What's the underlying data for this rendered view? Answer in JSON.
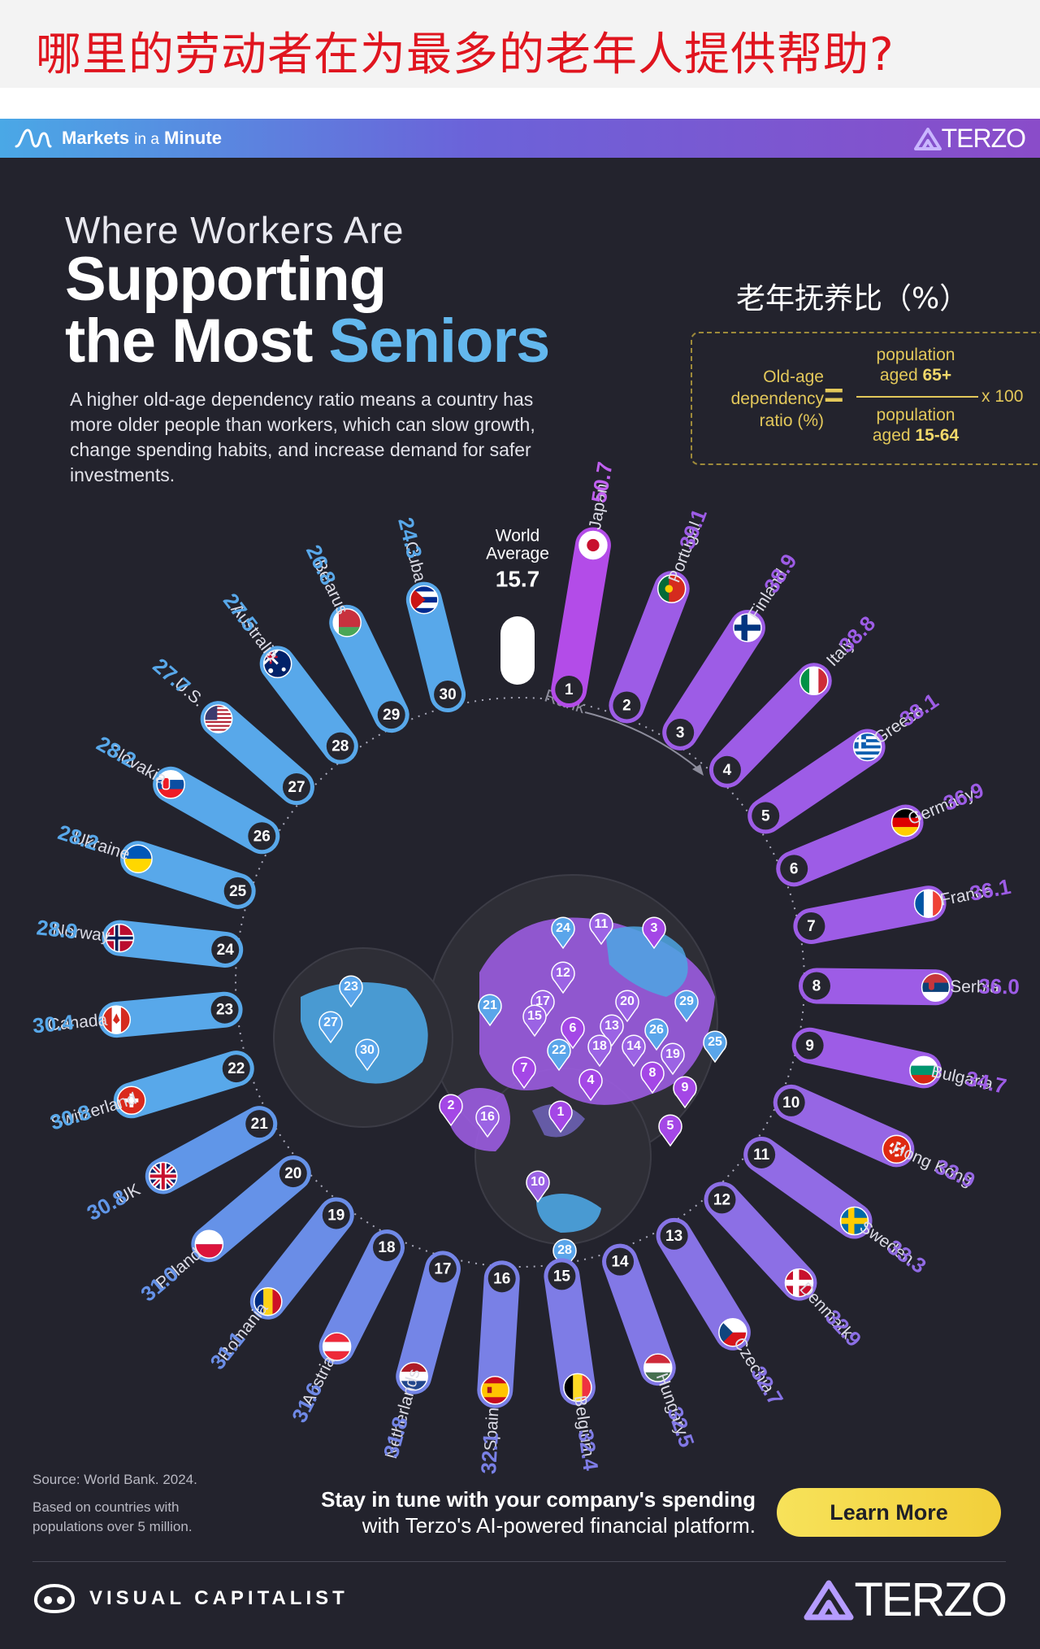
{
  "banner": {
    "title": "哪里的劳动者在为最多的老年人提供帮助?"
  },
  "header": {
    "brand_bold": "Markets",
    "brand_small": "in a",
    "brand_end": "Minute",
    "partner": "TERZO"
  },
  "headline": {
    "line1": "Where Workers Are",
    "line2": "Supporting",
    "line3_a": "the Most ",
    "line3_b": "Seniors"
  },
  "description": "A higher old-age dependency ratio means a country has more older people than workers, which can slow growth, change spending habits, and increase demand for safer investments.",
  "cn_metric_label": "老年抚养比（%）",
  "formula": {
    "lhs": [
      "Old-age",
      "dependency",
      "ratio (%)"
    ],
    "eq": "=",
    "num_1": "population",
    "num_2a": "aged ",
    "num_2b": "65+",
    "den_1": "population",
    "den_2a": "aged ",
    "den_2b": "15-64",
    "multiplier": "x 100"
  },
  "colors": {
    "background": "#23232d",
    "top_rank": "#a447e6",
    "purple": "#9b63e4",
    "violet": "#7d78e0",
    "blue": "#5aa5ea",
    "world_pill": "#ffffff",
    "formula": "#e3c85a"
  },
  "chart_data": {
    "type": "radial-bar",
    "world_average": {
      "label_1": "World",
      "label_2": "Average",
      "value": 15.7
    },
    "rank_label": "Rank",
    "countries": [
      {
        "rank": 1,
        "name": "Japan",
        "value": 50.7,
        "flag": "japan-flag"
      },
      {
        "rank": 2,
        "name": "Portugal",
        "value": 39.1,
        "flag": "portugal-flag"
      },
      {
        "rank": 3,
        "name": "Finland",
        "value": 38.9,
        "flag": "finland-flag"
      },
      {
        "rank": 4,
        "name": "Italy",
        "value": 38.8,
        "flag": "italy-flag"
      },
      {
        "rank": 5,
        "name": "Greece",
        "value": 38.1,
        "flag": "greece-flag"
      },
      {
        "rank": 6,
        "name": "Germany",
        "value": 36.9,
        "flag": "germany-flag"
      },
      {
        "rank": 7,
        "name": "France",
        "value": 36.1,
        "flag": "france-flag"
      },
      {
        "rank": 8,
        "name": "Serbia",
        "value": 36.0,
        "flag": "serbia-flag"
      },
      {
        "rank": 9,
        "name": "Bulgaria",
        "value": 34.7,
        "flag": "bulgaria-flag"
      },
      {
        "rank": 10,
        "name": "Hong Kong",
        "value": 33.9,
        "flag": "hong-kong-flag"
      },
      {
        "rank": 11,
        "name": "Sweden",
        "value": 33.3,
        "flag": "sweden-flag"
      },
      {
        "rank": 12,
        "name": "Denmark",
        "value": 32.9,
        "flag": "denmark-flag"
      },
      {
        "rank": 13,
        "name": "Czechia",
        "value": 32.7,
        "flag": "czechia-flag"
      },
      {
        "rank": 14,
        "name": "Hungary",
        "value": 32.5,
        "flag": "hungary-flag"
      },
      {
        "rank": 15,
        "name": "Belgium",
        "value": 32.4,
        "flag": "belgium-flag"
      },
      {
        "rank": 16,
        "name": "Spain",
        "value": 32.1,
        "flag": "spain-flag"
      },
      {
        "rank": 17,
        "name": "Netherlands",
        "value": 31.8,
        "flag": "netherlands-flag"
      },
      {
        "rank": 18,
        "name": "Austria",
        "value": 31.6,
        "flag": "austria-flag"
      },
      {
        "rank": 19,
        "name": "Romania",
        "value": 31.1,
        "flag": "romania-flag"
      },
      {
        "rank": 20,
        "name": "Poland",
        "value": 31.0,
        "flag": "poland-flag"
      },
      {
        "rank": 21,
        "name": "UK",
        "value": 30.8,
        "flag": "uk-flag"
      },
      {
        "rank": 22,
        "name": "Switzerland",
        "value": 30.8,
        "flag": "switzerland-flag"
      },
      {
        "rank": 23,
        "name": "Canada",
        "value": 30.4,
        "flag": "canada-flag"
      },
      {
        "rank": 24,
        "name": "Norway",
        "value": 28.9,
        "flag": "norway-flag"
      },
      {
        "rank": 25,
        "name": "Ukraine",
        "value": 28.2,
        "flag": "ukraine-flag"
      },
      {
        "rank": 26,
        "name": "Slovakia",
        "value": 28.2,
        "flag": "slovakia-flag"
      },
      {
        "rank": 27,
        "name": "U.S.",
        "value": 27.7,
        "flag": "us-flag"
      },
      {
        "rank": 28,
        "name": "Australia",
        "value": 27.5,
        "flag": "australia-flag"
      },
      {
        "rank": 29,
        "name": "Belarus",
        "value": 26.8,
        "flag": "belarus-flag"
      },
      {
        "rank": 30,
        "name": "Cuba",
        "value": 24.3,
        "flag": "cuba-flag"
      }
    ]
  },
  "globes": {
    "america_pins": [
      23,
      27,
      30
    ],
    "europe_pins": [
      24,
      11,
      3,
      12,
      21,
      17,
      15,
      20,
      29,
      6,
      13,
      26,
      25,
      22,
      18,
      14,
      19,
      7,
      4,
      8,
      9,
      2,
      16,
      5
    ],
    "asia_pins": [
      1,
      10,
      28
    ]
  },
  "footer": {
    "source": "Source: World Bank. 2024.",
    "note": "Based on countries with populations over 5 million.",
    "promo_line1": "Stay in tune with your company's spending",
    "promo_line2": "with Terzo's AI-powered financial platform.",
    "cta": "Learn More",
    "vc_name": "VISUAL CAPITALIST",
    "terzo": "TERZO"
  }
}
